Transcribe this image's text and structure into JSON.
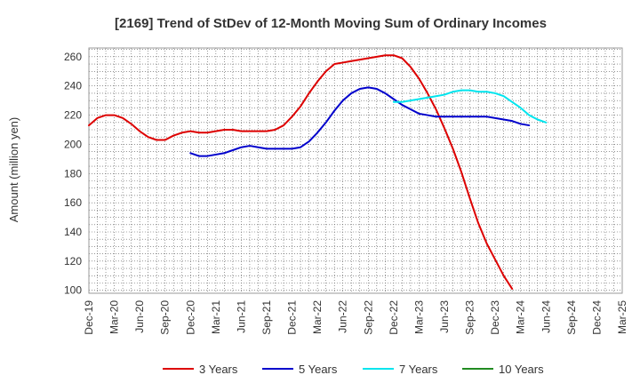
{
  "chart_data": {
    "type": "line",
    "title": "[2169]  Trend of StDev of 12-Month Moving Sum of Ordinary Incomes",
    "xlabel": "",
    "ylabel": "Amount (million yen)",
    "x_ticks": [
      "Dec-19",
      "Mar-20",
      "Jun-20",
      "Sep-20",
      "Dec-20",
      "Mar-21",
      "Jun-21",
      "Sep-21",
      "Dec-21",
      "Mar-22",
      "Jun-22",
      "Sep-22",
      "Dec-22",
      "Mar-23",
      "Jun-23",
      "Sep-23",
      "Dec-23",
      "Mar-24",
      "Jun-24",
      "Sep-24",
      "Dec-24",
      "Mar-25"
    ],
    "y_ticks": [
      100,
      120,
      140,
      160,
      180,
      200,
      220,
      240,
      260
    ],
    "ylim": [
      98,
      266
    ],
    "grid": true,
    "legend_position": "bottom",
    "series": [
      {
        "name": "3 Years",
        "color": "#dd0000",
        "start_index": 0,
        "values": [
          213,
          218,
          220,
          220,
          218,
          214,
          209,
          205,
          203,
          203,
          206,
          208,
          209,
          208,
          208,
          209,
          210,
          210,
          209,
          209,
          209,
          209,
          210,
          213,
          219,
          226,
          235,
          243,
          250,
          255,
          256,
          257,
          258,
          259,
          260,
          261,
          261,
          259,
          253,
          245,
          235,
          224,
          211,
          197,
          181,
          163,
          146,
          132,
          121,
          110,
          101
        ]
      },
      {
        "name": "5 Years",
        "color": "#0000cc",
        "start_index": 12,
        "values": [
          194,
          192,
          192,
          193,
          194,
          196,
          198,
          199,
          198,
          197,
          197,
          197,
          197,
          198,
          202,
          208,
          215,
          223,
          230,
          235,
          238,
          239,
          238,
          235,
          231,
          227,
          224,
          221,
          220,
          219,
          219,
          219,
          219,
          219,
          219,
          219,
          218,
          217,
          216,
          214,
          213
        ]
      },
      {
        "name": "7 Years",
        "color": "#00e5ee",
        "start_index": 36,
        "values": [
          229,
          229,
          230,
          231,
          232,
          233,
          234,
          236,
          237,
          237,
          236,
          236,
          235,
          233,
          229,
          225,
          220,
          217,
          215
        ]
      },
      {
        "name": "10 Years",
        "color": "#228b22",
        "start_index": 0,
        "values": []
      }
    ]
  }
}
